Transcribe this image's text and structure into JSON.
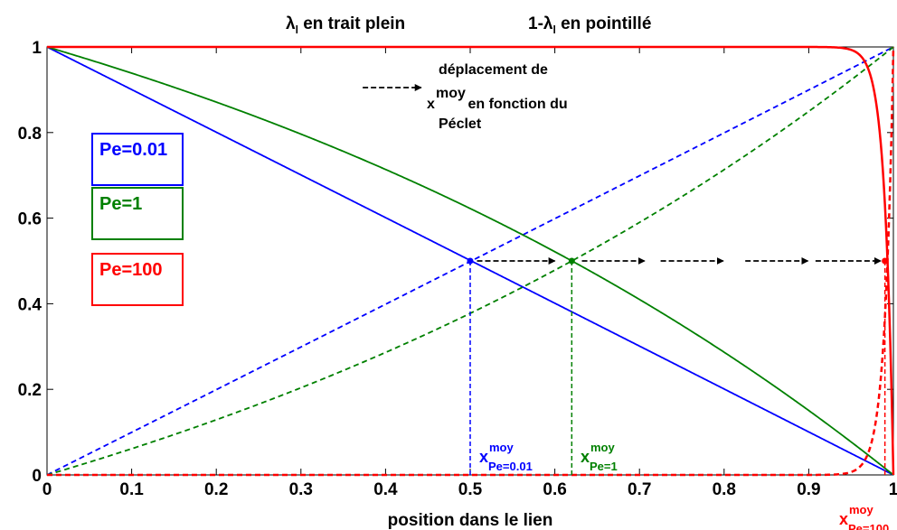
{
  "chart_data": {
    "type": "line",
    "title_left": "λl en trait plein",
    "title_right": "1-λl en pointillé",
    "xlabel": "position dans le lien",
    "ylabel": "",
    "xlim": [
      0,
      1
    ],
    "ylim": [
      0,
      1
    ],
    "x_ticks": [
      "0",
      "0.1",
      "0.2",
      "0.3",
      "0.4",
      "0.5",
      "0.6",
      "0.7",
      "0.8",
      "0.9",
      "1"
    ],
    "y_ticks": [
      "0",
      "0.2",
      "0.4",
      "0.6",
      "0.8",
      "1"
    ],
    "grid": false,
    "series": [
      {
        "name": "Pe=0.01",
        "color": "#0000ff",
        "pe": 0.01,
        "style": "solid",
        "quantity": "λl"
      },
      {
        "name": "Pe=0.01",
        "color": "#0000ff",
        "pe": 0.01,
        "style": "dashed",
        "quantity": "1-λl"
      },
      {
        "name": "Pe=1",
        "color": "#008000",
        "pe": 1,
        "style": "solid",
        "quantity": "λl"
      },
      {
        "name": "Pe=1",
        "color": "#008000",
        "pe": 1,
        "style": "dashed",
        "quantity": "1-λl"
      },
      {
        "name": "Pe=100",
        "color": "#ff0000",
        "pe": 100,
        "style": "solid",
        "quantity": "λl"
      },
      {
        "name": "Pe=100",
        "color": "#ff0000",
        "pe": 100,
        "style": "dashed",
        "quantity": "1-λl"
      }
    ],
    "intersections": [
      {
        "x": 0.5,
        "y": 0.5,
        "color": "#0000ff"
      },
      {
        "x": 0.62,
        "y": 0.5,
        "color": "#008000"
      },
      {
        "x": 0.99,
        "y": 0.5,
        "color": "#ff0000"
      }
    ],
    "legend": [
      {
        "label": "Pe=0.01",
        "color": "#0000ff"
      },
      {
        "label": "Pe=1",
        "color": "#008000"
      },
      {
        "label": "Pe=100",
        "color": "#ff0000"
      }
    ],
    "annotations": {
      "arrow_note_line1": "déplacement de",
      "arrow_note_x": "x",
      "arrow_note_sup": "moy",
      "arrow_note_line2_rest": " en fonction du",
      "arrow_note_line3": "Péclet",
      "xmoy_base": "x",
      "xmoy_sup": "moy",
      "xmoy_labels": [
        {
          "sub": "Pe=0.01",
          "color": "#0000ff"
        },
        {
          "sub": "Pe=1",
          "color": "#008000"
        },
        {
          "sub": "Pe=100",
          "color": "#ff0000"
        }
      ]
    }
  }
}
